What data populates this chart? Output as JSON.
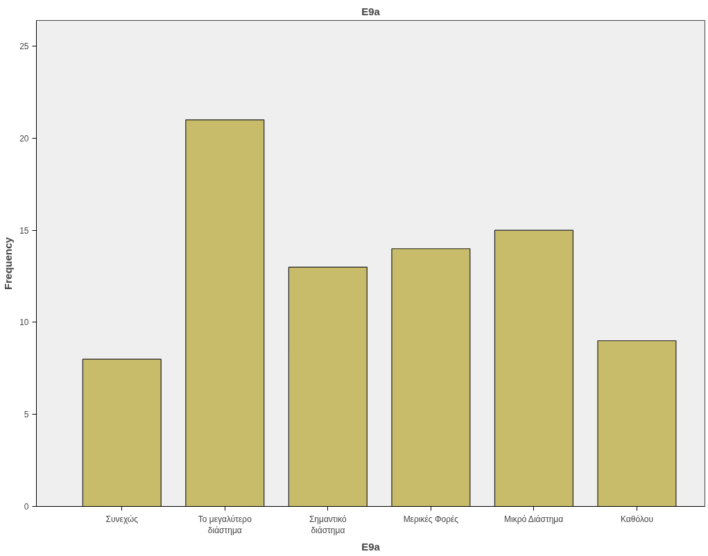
{
  "chart_data": {
    "type": "bar",
    "title": "E9a",
    "xlabel": "E9a",
    "ylabel": "Frequency",
    "categories": [
      "Συνεχώς",
      "Το μεγαλύτερο\nδιάστημα",
      "Σημαντικό\nδιάστημα",
      "Μερικές Φορές",
      "Μικρό Διάστημα",
      "Καθόλου"
    ],
    "values": [
      8,
      21,
      13,
      14,
      15,
      9
    ],
    "color": "#c8bc6a",
    "ylim": [
      0,
      26.4
    ],
    "yticks": [
      0,
      5,
      10,
      15,
      20,
      25
    ],
    "grid": false
  }
}
